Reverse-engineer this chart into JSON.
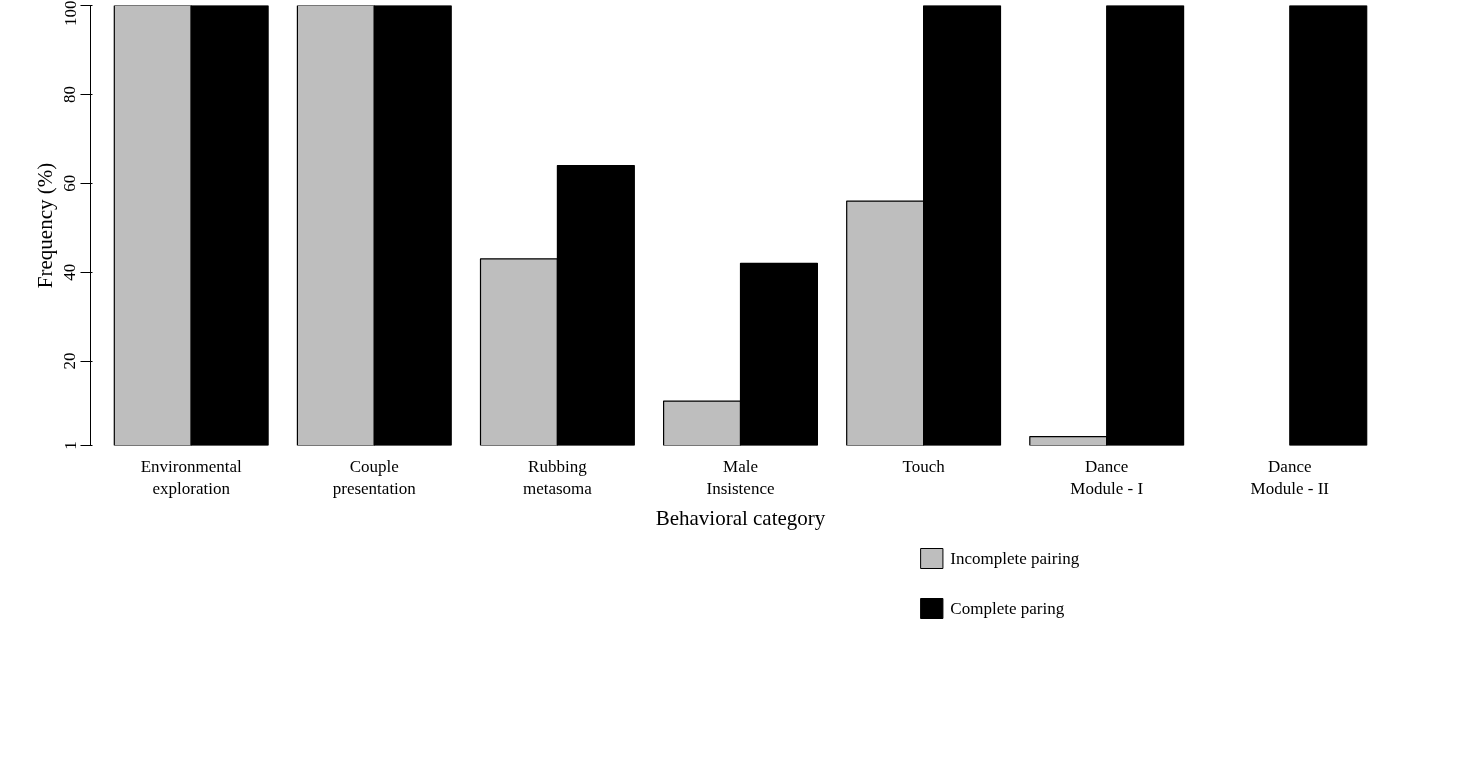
{
  "chart_data": {
    "type": "bar",
    "xlabel": "Behavioral category",
    "ylabel": "Frequency (%)",
    "categories": [
      "Environmental\nexploration",
      "Couple\npresentation",
      "Rubbing\nmetasoma",
      "Male\nInsistence",
      "Touch",
      "Dance\nModule - I",
      "Dance\nModule - II"
    ],
    "series": [
      {
        "name": "Incomplete pairing",
        "color": "#bebebe",
        "values": [
          100,
          100,
          43,
          11,
          56,
          3,
          null
        ]
      },
      {
        "name": "Complete paring",
        "color": "#000000",
        "values": [
          100,
          100,
          64,
          42,
          100,
          100,
          100
        ]
      }
    ],
    "ylim": [
      1,
      100
    ],
    "yticks": [
      1,
      20,
      40,
      60,
      80,
      100
    ],
    "grid": false,
    "legend": "bottom"
  }
}
